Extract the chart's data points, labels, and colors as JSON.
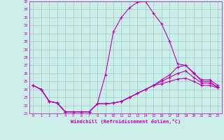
{
  "xlabel": "Windchill (Refroidissement éolien,°C)",
  "xlim": [
    -0.5,
    23.5
  ],
  "ylim": [
    21,
    35
  ],
  "xticks": [
    0,
    1,
    2,
    3,
    4,
    5,
    6,
    7,
    8,
    9,
    10,
    11,
    12,
    13,
    14,
    15,
    16,
    17,
    18,
    19,
    20,
    21,
    22,
    23
  ],
  "yticks": [
    21,
    22,
    23,
    24,
    25,
    26,
    27,
    28,
    29,
    30,
    31,
    32,
    33,
    34,
    35
  ],
  "bg_color": "#cceee8",
  "line_color": "#bb00bb",
  "grid_color": "#99cccc",
  "line1_x": [
    0,
    1,
    2,
    3,
    4,
    5,
    6,
    7,
    8,
    9,
    10,
    11,
    12,
    13,
    14,
    15,
    16,
    17,
    18,
    19,
    20,
    21,
    22,
    23
  ],
  "line1_y": [
    24.5,
    24.0,
    22.5,
    22.3,
    21.2,
    21.2,
    21.2,
    21.2,
    22.2,
    25.8,
    31.2,
    33.0,
    34.2,
    34.9,
    35.0,
    33.5,
    32.2,
    30.0,
    27.2,
    27.0,
    26.1,
    25.0,
    25.0,
    24.2
  ],
  "line2_x": [
    0,
    1,
    2,
    3,
    4,
    5,
    6,
    7,
    8,
    9,
    10,
    11,
    12,
    13,
    14,
    15,
    16,
    17,
    18,
    19,
    20,
    21,
    22,
    23
  ],
  "line2_y": [
    24.5,
    24.0,
    22.5,
    22.3,
    21.2,
    21.2,
    21.2,
    21.2,
    22.2,
    22.2,
    22.3,
    22.5,
    23.0,
    23.5,
    24.0,
    24.5,
    25.2,
    25.8,
    26.8,
    27.0,
    26.0,
    25.2,
    25.2,
    24.5
  ],
  "line3_x": [
    0,
    1,
    2,
    3,
    4,
    5,
    6,
    7,
    8,
    9,
    10,
    11,
    12,
    13,
    14,
    15,
    16,
    17,
    18,
    19,
    20,
    21,
    22,
    23
  ],
  "line3_y": [
    24.5,
    24.0,
    22.5,
    22.3,
    21.2,
    21.2,
    21.2,
    21.2,
    22.2,
    22.2,
    22.3,
    22.5,
    23.0,
    23.5,
    24.0,
    24.5,
    25.0,
    25.5,
    26.0,
    26.3,
    25.5,
    24.8,
    24.8,
    24.3
  ],
  "line4_x": [
    0,
    1,
    2,
    3,
    4,
    5,
    6,
    7,
    8,
    9,
    10,
    11,
    12,
    13,
    14,
    15,
    16,
    17,
    18,
    19,
    20,
    21,
    22,
    23
  ],
  "line4_y": [
    24.5,
    24.0,
    22.5,
    22.3,
    21.2,
    21.2,
    21.2,
    21.2,
    22.2,
    22.2,
    22.3,
    22.5,
    23.0,
    23.5,
    24.0,
    24.5,
    24.7,
    25.0,
    25.3,
    25.4,
    25.0,
    24.5,
    24.5,
    24.2
  ]
}
